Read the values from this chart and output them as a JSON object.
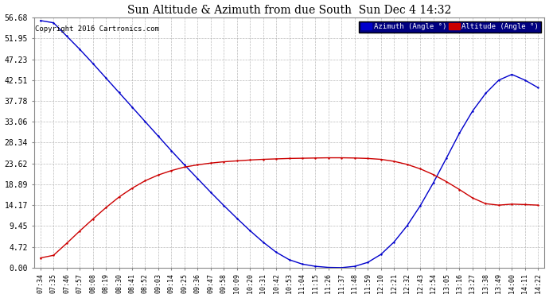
{
  "title": "Sun Altitude & Azimuth from due South  Sun Dec 4 14:32",
  "copyright": "Copyright 2016 Cartronics.com",
  "legend_azimuth": "Azimuth (Angle °)",
  "legend_altitude": "Altitude (Angle °)",
  "azimuth_color": "#0000cc",
  "altitude_color": "#cc0000",
  "background_color": "#ffffff",
  "plot_bg": "#ffffff",
  "grid_color": "#aaaaaa",
  "yticks": [
    0.0,
    4.72,
    9.45,
    14.17,
    18.89,
    23.62,
    28.34,
    33.06,
    37.78,
    42.51,
    47.23,
    51.95,
    56.68
  ],
  "x_times": [
    "07:34",
    "07:35",
    "07:46",
    "07:57",
    "08:08",
    "08:19",
    "08:30",
    "08:41",
    "08:52",
    "09:03",
    "09:14",
    "09:25",
    "09:36",
    "09:47",
    "09:58",
    "10:09",
    "10:20",
    "10:31",
    "10:42",
    "10:53",
    "11:04",
    "11:15",
    "11:26",
    "11:37",
    "11:48",
    "11:59",
    "12:10",
    "12:21",
    "12:32",
    "12:43",
    "12:54",
    "13:05",
    "13:16",
    "13:27",
    "13:38",
    "13:49",
    "14:00",
    "14:11",
    "14:22"
  ],
  "azimuth_values": [
    56.0,
    55.5,
    52.5,
    49.5,
    46.3,
    43.0,
    39.7,
    36.4,
    33.1,
    29.8,
    26.5,
    23.3,
    20.2,
    17.1,
    14.1,
    11.2,
    8.4,
    5.8,
    3.5,
    1.8,
    0.8,
    0.3,
    0.05,
    0.0,
    0.3,
    1.2,
    3.0,
    5.8,
    9.5,
    14.0,
    19.2,
    24.8,
    30.5,
    35.5,
    39.5,
    42.5,
    43.8,
    42.5,
    40.8
  ],
  "altitude_values": [
    2.2,
    2.8,
    5.5,
    8.3,
    11.0,
    13.6,
    16.0,
    18.0,
    19.7,
    21.0,
    22.0,
    22.8,
    23.3,
    23.7,
    24.0,
    24.2,
    24.4,
    24.55,
    24.65,
    24.75,
    24.8,
    24.85,
    24.9,
    24.9,
    24.85,
    24.75,
    24.55,
    24.1,
    23.4,
    22.4,
    21.1,
    19.5,
    17.7,
    15.8,
    14.5,
    14.17,
    14.4,
    14.3,
    14.17
  ]
}
